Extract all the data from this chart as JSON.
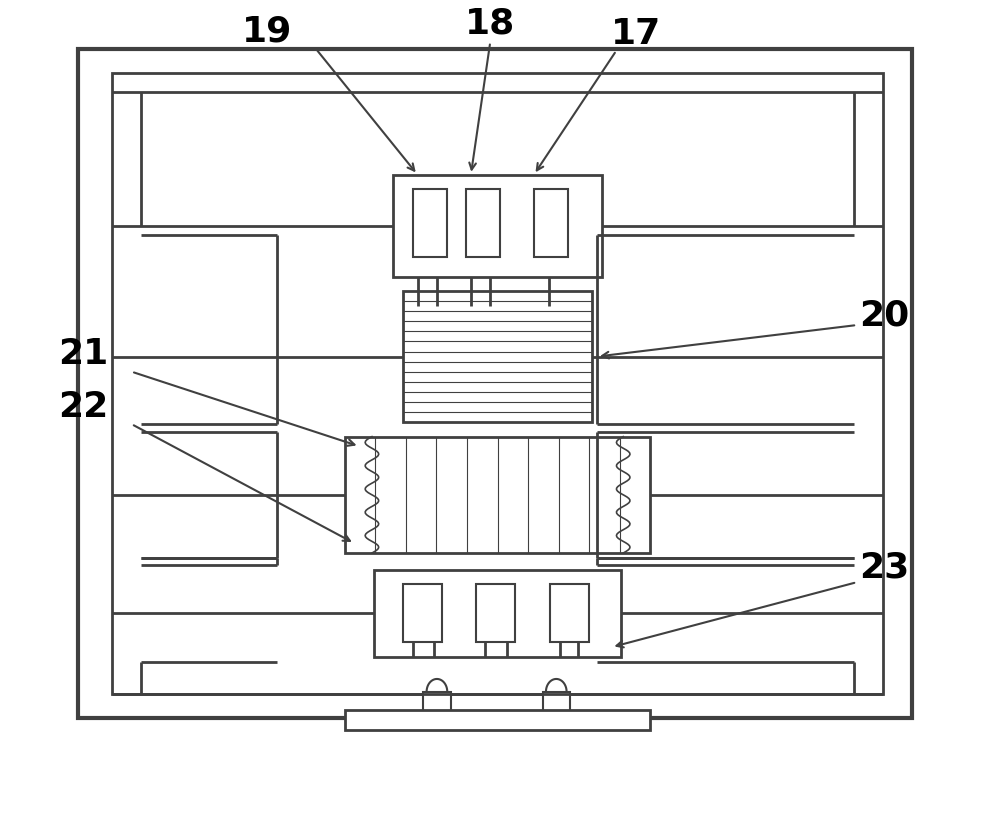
{
  "bg_color": "#ffffff",
  "line_color": "#404040",
  "label_fontsize": 26,
  "label_fontweight": "bold"
}
